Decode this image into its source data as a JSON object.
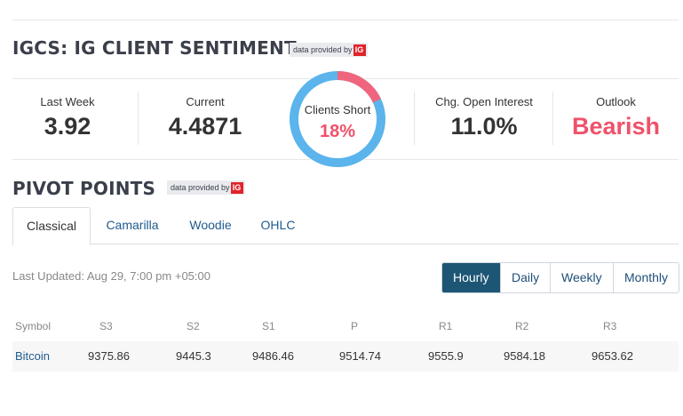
{
  "sentiment": {
    "title": "IGCS: IG CLIENT SENTIMENT",
    "provided_by": "data provided by",
    "provider_logo": "IG",
    "last_week_label": "Last Week",
    "last_week_value": "3.92",
    "current_label": "Current",
    "current_value": "4.4871",
    "clients_short_label": "Clients Short",
    "clients_short_value": "18%",
    "clients_short_fraction": 0.18,
    "open_interest_label": "Chg. Open Interest",
    "open_interest_value": "11.0%",
    "outlook_label": "Outlook",
    "outlook_value": "Bearish",
    "colors": {
      "short": "#f0657e",
      "long": "#5bb4ec",
      "bearish": "#f0516a"
    }
  },
  "pivot": {
    "title": "PIVOT POINTS",
    "provided_by": "data provided by",
    "provider_logo": "IG",
    "tabs": [
      "Classical",
      "Camarilla",
      "Woodie",
      "OHLC"
    ],
    "active_tab": "Classical",
    "last_updated": "Last Updated: Aug 29, 7:00 pm +05:00",
    "periods": [
      "Hourly",
      "Daily",
      "Weekly",
      "Monthly"
    ],
    "active_period": "Hourly",
    "columns": [
      "Symbol",
      "S3",
      "S2",
      "S1",
      "P",
      "R1",
      "R2",
      "R3"
    ],
    "rows": [
      {
        "symbol": "Bitcoin",
        "s3": "9375.86",
        "s2": "9445.3",
        "s1": "9486.46",
        "p": "9514.74",
        "r1": "9555.9",
        "r2": "9584.18",
        "r3": "9653.62"
      }
    ]
  }
}
